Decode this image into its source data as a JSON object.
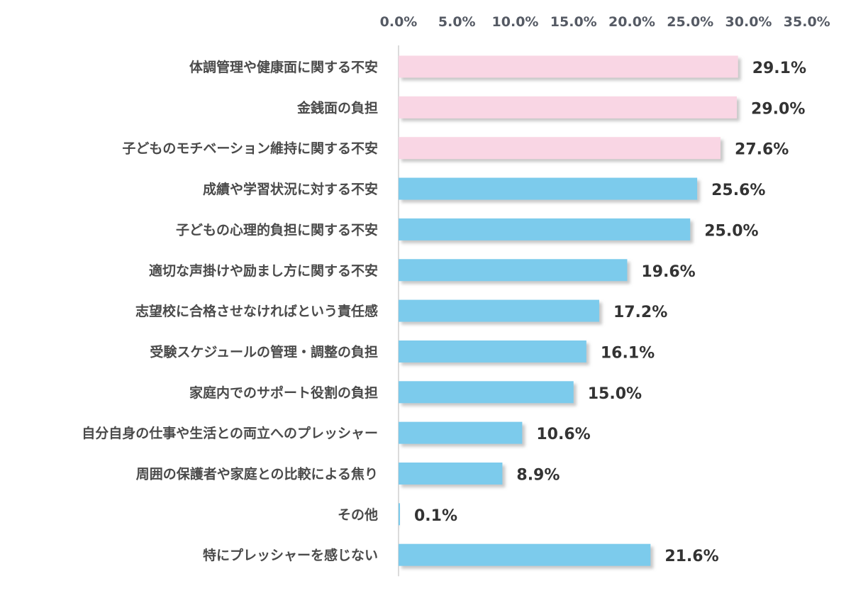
{
  "chart_data": {
    "type": "bar",
    "orientation": "horizontal",
    "categories": [
      "体調管理や健康面に関する不安",
      "金銭面の負担",
      "子どものモチベーション維持に関する不安",
      "成績や学習状況に対する不安",
      "子どもの心理的負担に関する不安",
      "適切な声掛けや励まし方に関する不安",
      "志望校に合格させなければという責任感",
      "受験スケジュールの管理・調整の負担",
      "家庭内でのサポート役割の負担",
      "自分自身の仕事や生活との両立へのプレッシャー",
      "周囲の保護者や家庭との比較による焦り",
      "その他",
      "特にプレッシャーを感じない"
    ],
    "values": [
      29.1,
      29.0,
      27.6,
      25.6,
      25.0,
      19.6,
      17.2,
      16.1,
      15.0,
      10.6,
      8.9,
      0.1,
      21.6
    ],
    "value_labels": [
      "29.1%",
      "29.0%",
      "27.6%",
      "25.6%",
      "25.0%",
      "19.6%",
      "17.2%",
      "16.1%",
      "15.0%",
      "10.6%",
      "8.9%",
      "0.1%",
      "21.6%"
    ],
    "highlighted_count": 3,
    "x_ticks": [
      0,
      5,
      10,
      15,
      20,
      25,
      30,
      35
    ],
    "x_tick_labels": [
      "0.0%",
      "5.0%",
      "10.0%",
      "15.0%",
      "20.0%",
      "25.0%",
      "30.0%",
      "35.0%"
    ],
    "xlim": [
      0,
      35
    ],
    "axis_position": "top",
    "grid": false,
    "legend": "none",
    "title": "",
    "xlabel": "",
    "ylabel": "",
    "colors": {
      "highlight_bar": "#f9d6e4",
      "default_bar": "#7ccbec",
      "axis_line": "#cfcfcf",
      "bar_shadow": "#bdbdbd"
    }
  }
}
